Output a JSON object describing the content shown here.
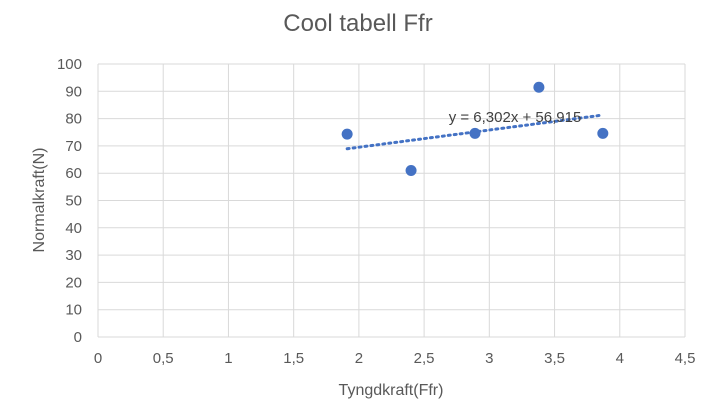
{
  "chart_data": {
    "type": "scatter",
    "title": "Cool tabell Ffr",
    "xlabel": "Tyngdkraft(Ffr)",
    "ylabel": "Normalkraft(N)",
    "xlim": [
      0,
      4.5
    ],
    "ylim": [
      0,
      100
    ],
    "x_ticks": [
      0,
      0.5,
      1,
      1.5,
      2,
      2.5,
      3,
      3.5,
      4,
      4.5
    ],
    "x_tick_labels": [
      "0",
      "0,5",
      "1",
      "1,5",
      "2",
      "2,5",
      "3",
      "3,5",
      "4",
      "4,5"
    ],
    "y_ticks": [
      0,
      10,
      20,
      30,
      40,
      50,
      60,
      70,
      80,
      90,
      100
    ],
    "y_tick_labels": [
      "0",
      "10",
      "20",
      "30",
      "40",
      "50",
      "60",
      "70",
      "80",
      "90",
      "100"
    ],
    "grid": true,
    "points": [
      {
        "x": 1.91,
        "y": 74.3
      },
      {
        "x": 2.4,
        "y": 61.0
      },
      {
        "x": 2.89,
        "y": 74.6
      },
      {
        "x": 3.38,
        "y": 91.5
      },
      {
        "x": 3.87,
        "y": 74.6
      }
    ],
    "trendline": {
      "type": "linear",
      "slope": 6.302,
      "intercept": 56.915,
      "x_start": 1.91,
      "x_end": 3.87,
      "label": "y = 6,302x + 56,915"
    },
    "colors": {
      "marker": "#4472C4",
      "trendline": "#4472C4",
      "grid": "#D9D9D9",
      "text": "#595959"
    }
  }
}
